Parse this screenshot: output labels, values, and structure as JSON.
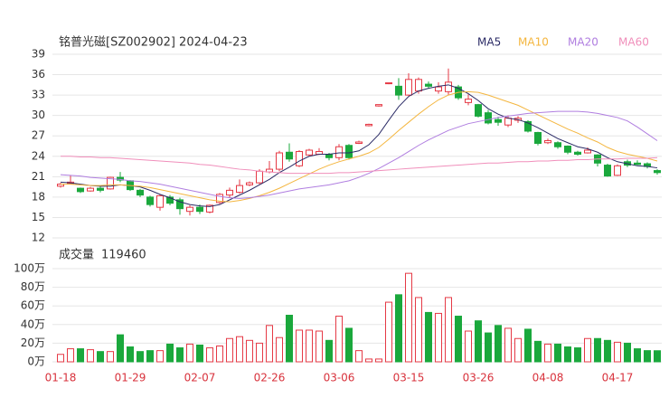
{
  "chart_data": [
    {
      "type": "candlestick",
      "title": "铭普光磁[SZ002902] 2024-04-23",
      "categories": [
        "01-18",
        null,
        null,
        null,
        null,
        null,
        null,
        "01-29",
        null,
        null,
        null,
        null,
        null,
        null,
        "02-07",
        null,
        null,
        null,
        null,
        null,
        null,
        "02-26",
        null,
        null,
        null,
        null,
        null,
        null,
        "03-06",
        null,
        null,
        null,
        null,
        null,
        null,
        "03-15",
        null,
        null,
        null,
        null,
        null,
        null,
        "03-26",
        null,
        null,
        null,
        null,
        null,
        null,
        "04-08",
        null,
        null,
        null,
        null,
        null,
        null,
        "04-17",
        null,
        null,
        null,
        null
      ],
      "open": [
        19.6,
        20.0,
        19.3,
        18.9,
        19.3,
        19.2,
        20.9,
        20.4,
        19.0,
        18.0,
        16.5,
        18.0,
        17.6,
        15.9,
        16.5,
        15.8,
        17.2,
        18.3,
        18.7,
        19.8,
        20.1,
        21.7,
        22.1,
        24.6,
        22.6,
        24.2,
        24.3,
        24.3,
        23.8,
        25.6,
        25.9,
        28.5,
        31.4,
        34.7,
        34.3,
        33.0,
        33.6,
        34.6,
        33.6,
        33.5,
        34.2,
        31.9,
        31.6,
        30.4,
        29.4,
        28.6,
        29.3,
        29.1,
        27.5,
        26.0,
        26.0,
        25.5,
        24.6,
        24.5,
        24.2,
        22.7,
        21.2,
        23.2,
        23.0,
        22.9,
        21.9
      ],
      "high": [
        20.1,
        21.2,
        19.4,
        19.5,
        19.6,
        21.0,
        21.7,
        20.5,
        19.2,
        18.2,
        18.4,
        18.3,
        17.9,
        16.8,
        16.9,
        16.9,
        18.6,
        19.4,
        20.6,
        20.3,
        22.1,
        23.3,
        24.8,
        25.9,
        24.9,
        25.1,
        25.2,
        24.5,
        25.8,
        25.8,
        26.3,
        28.8,
        31.6,
        34.8,
        35.5,
        36.2,
        35.6,
        35.0,
        34.9,
        36.9,
        34.5,
        33.1,
        31.7,
        30.8,
        29.8,
        30.0,
        29.9,
        29.3,
        27.6,
        26.6,
        26.2,
        25.6,
        24.8,
        25.3,
        24.3,
        22.9,
        22.8,
        23.5,
        23.4,
        23.1,
        22.1
      ],
      "low": [
        19.4,
        19.9,
        18.6,
        18.8,
        18.7,
        19.1,
        20.2,
        18.9,
        18.0,
        16.6,
        16.0,
        16.8,
        15.4,
        15.3,
        15.5,
        15.6,
        17.0,
        17.9,
        18.5,
        19.6,
        19.9,
        21.5,
        21.8,
        23.2,
        22.4,
        24.0,
        24.2,
        23.4,
        23.4,
        23.5,
        25.8,
        28.4,
        31.3,
        34.6,
        32.3,
        32.9,
        33.2,
        34.0,
        33.2,
        33.0,
        32.3,
        31.5,
        29.7,
        28.7,
        28.5,
        28.3,
        28.9,
        27.5,
        25.6,
        25.8,
        25.1,
        24.3,
        24.1,
        24.4,
        22.5,
        21.0,
        21.1,
        22.4,
        22.7,
        22.2,
        21.3
      ],
      "close": [
        19.9,
        20.2,
        18.8,
        19.3,
        19.0,
        20.9,
        20.5,
        19.1,
        18.3,
        16.9,
        18.2,
        17.1,
        16.3,
        16.5,
        15.9,
        16.8,
        18.4,
        19.0,
        19.7,
        20.1,
        21.8,
        22.1,
        24.5,
        23.6,
        24.7,
        24.9,
        24.7,
        23.8,
        25.4,
        23.8,
        26.1,
        28.7,
        31.6,
        34.8,
        33.0,
        35.3,
        35.3,
        34.3,
        34.2,
        34.9,
        32.6,
        32.4,
        29.9,
        28.9,
        29.0,
        29.6,
        29.6,
        27.7,
        25.9,
        26.3,
        25.4,
        24.6,
        24.3,
        24.9,
        23.0,
        21.1,
        22.6,
        22.7,
        22.8,
        22.5,
        21.6
      ],
      "series": [
        {
          "name": "MA5",
          "color": "#2b2b66",
          "values": [
            20.2,
            20.1,
            19.9,
            19.7,
            19.6,
            19.6,
            19.8,
            19.7,
            19.5,
            19.0,
            18.4,
            17.9,
            17.3,
            16.9,
            16.7,
            16.6,
            16.9,
            17.6,
            18.3,
            19.0,
            19.8,
            20.6,
            21.6,
            22.4,
            23.3,
            24.0,
            24.3,
            24.3,
            24.5,
            24.5,
            24.8,
            25.7,
            27.2,
            29.3,
            31.3,
            32.8,
            33.6,
            34.0,
            34.3,
            34.5,
            34.0,
            33.2,
            32.2,
            31.0,
            30.2,
            29.6,
            29.4,
            28.9,
            28.2,
            27.4,
            26.6,
            26.0,
            25.4,
            25.1,
            24.6,
            23.8,
            23.2,
            22.9,
            22.6,
            22.5,
            22.3
          ]
        },
        {
          "name": "MA10",
          "color": "#f4b63f",
          "values": [
            19.9,
            19.9,
            19.8,
            19.7,
            19.7,
            19.8,
            19.8,
            19.7,
            19.6,
            19.4,
            19.1,
            18.8,
            18.5,
            18.2,
            17.9,
            17.6,
            17.4,
            17.3,
            17.5,
            17.8,
            18.2,
            18.7,
            19.3,
            20.0,
            20.7,
            21.4,
            22.1,
            22.7,
            23.2,
            23.6,
            24.0,
            24.5,
            25.3,
            26.5,
            27.8,
            29.0,
            30.2,
            31.3,
            32.3,
            33.0,
            33.4,
            33.5,
            33.4,
            33.0,
            32.5,
            32.0,
            31.5,
            30.8,
            30.1,
            29.4,
            28.7,
            28.0,
            27.4,
            26.7,
            26.1,
            25.3,
            24.7,
            24.3,
            24.0,
            23.7,
            23.3
          ]
        },
        {
          "name": "MA20",
          "color": "#b07ee0",
          "values": [
            21.3,
            21.2,
            21.1,
            20.9,
            20.8,
            20.7,
            20.6,
            20.4,
            20.3,
            20.1,
            19.9,
            19.6,
            19.3,
            19.0,
            18.7,
            18.4,
            18.1,
            17.9,
            17.8,
            17.9,
            18.1,
            18.3,
            18.6,
            18.9,
            19.2,
            19.4,
            19.6,
            19.8,
            20.1,
            20.4,
            20.9,
            21.5,
            22.2,
            23.0,
            23.8,
            24.7,
            25.6,
            26.4,
            27.1,
            27.8,
            28.3,
            28.8,
            29.1,
            29.4,
            29.7,
            29.9,
            30.1,
            30.3,
            30.4,
            30.5,
            30.6,
            30.6,
            30.6,
            30.5,
            30.3,
            30.0,
            29.7,
            29.2,
            28.3,
            27.3,
            26.3
          ]
        },
        {
          "name": "MA60",
          "color": "#f08fbb",
          "values": [
            24.0,
            24.0,
            23.9,
            23.9,
            23.8,
            23.8,
            23.7,
            23.6,
            23.5,
            23.4,
            23.3,
            23.2,
            23.1,
            23.0,
            22.8,
            22.7,
            22.5,
            22.3,
            22.1,
            22.0,
            21.8,
            21.7,
            21.6,
            21.5,
            21.5,
            21.5,
            21.5,
            21.5,
            21.6,
            21.6,
            21.7,
            21.8,
            21.9,
            22.0,
            22.1,
            22.2,
            22.3,
            22.4,
            22.5,
            22.6,
            22.7,
            22.8,
            22.9,
            23.0,
            23.0,
            23.1,
            23.2,
            23.2,
            23.3,
            23.3,
            23.4,
            23.4,
            23.5,
            23.5,
            23.6,
            23.6,
            23.6,
            23.7,
            23.7,
            23.7,
            23.8
          ]
        }
      ],
      "up_color": "#e53945",
      "down_color": "#1aa83c",
      "ylim": [
        12,
        39
      ],
      "yticks": [
        12,
        15,
        18,
        21,
        24,
        27,
        30,
        33,
        36,
        39
      ],
      "grid": true
    },
    {
      "type": "bar",
      "title": "成交量",
      "latest_volume": 119460,
      "values": [
        8,
        14,
        14,
        13,
        11,
        11,
        29,
        16,
        11,
        12,
        12,
        19,
        15,
        19,
        18,
        15,
        17,
        25,
        27,
        23,
        20,
        39,
        26,
        50,
        34,
        34,
        33,
        23,
        49,
        36,
        12,
        3,
        3,
        64,
        72,
        95,
        69,
        53,
        52,
        69,
        49,
        33,
        44,
        31,
        39,
        36,
        25,
        35,
        22,
        19,
        19,
        16,
        15,
        25,
        25,
        23,
        21,
        20,
        14,
        12,
        11.9
      ],
      "ylim": [
        0,
        100
      ],
      "yticks": [
        {
          "value": 0,
          "label": "0万"
        },
        {
          "value": 20,
          "label": "20万"
        },
        {
          "value": 40,
          "label": "40万"
        },
        {
          "value": 60,
          "label": "60万"
        },
        {
          "value": 80,
          "label": "80万"
        },
        {
          "value": 100,
          "label": "100万"
        }
      ],
      "grid": true
    }
  ]
}
